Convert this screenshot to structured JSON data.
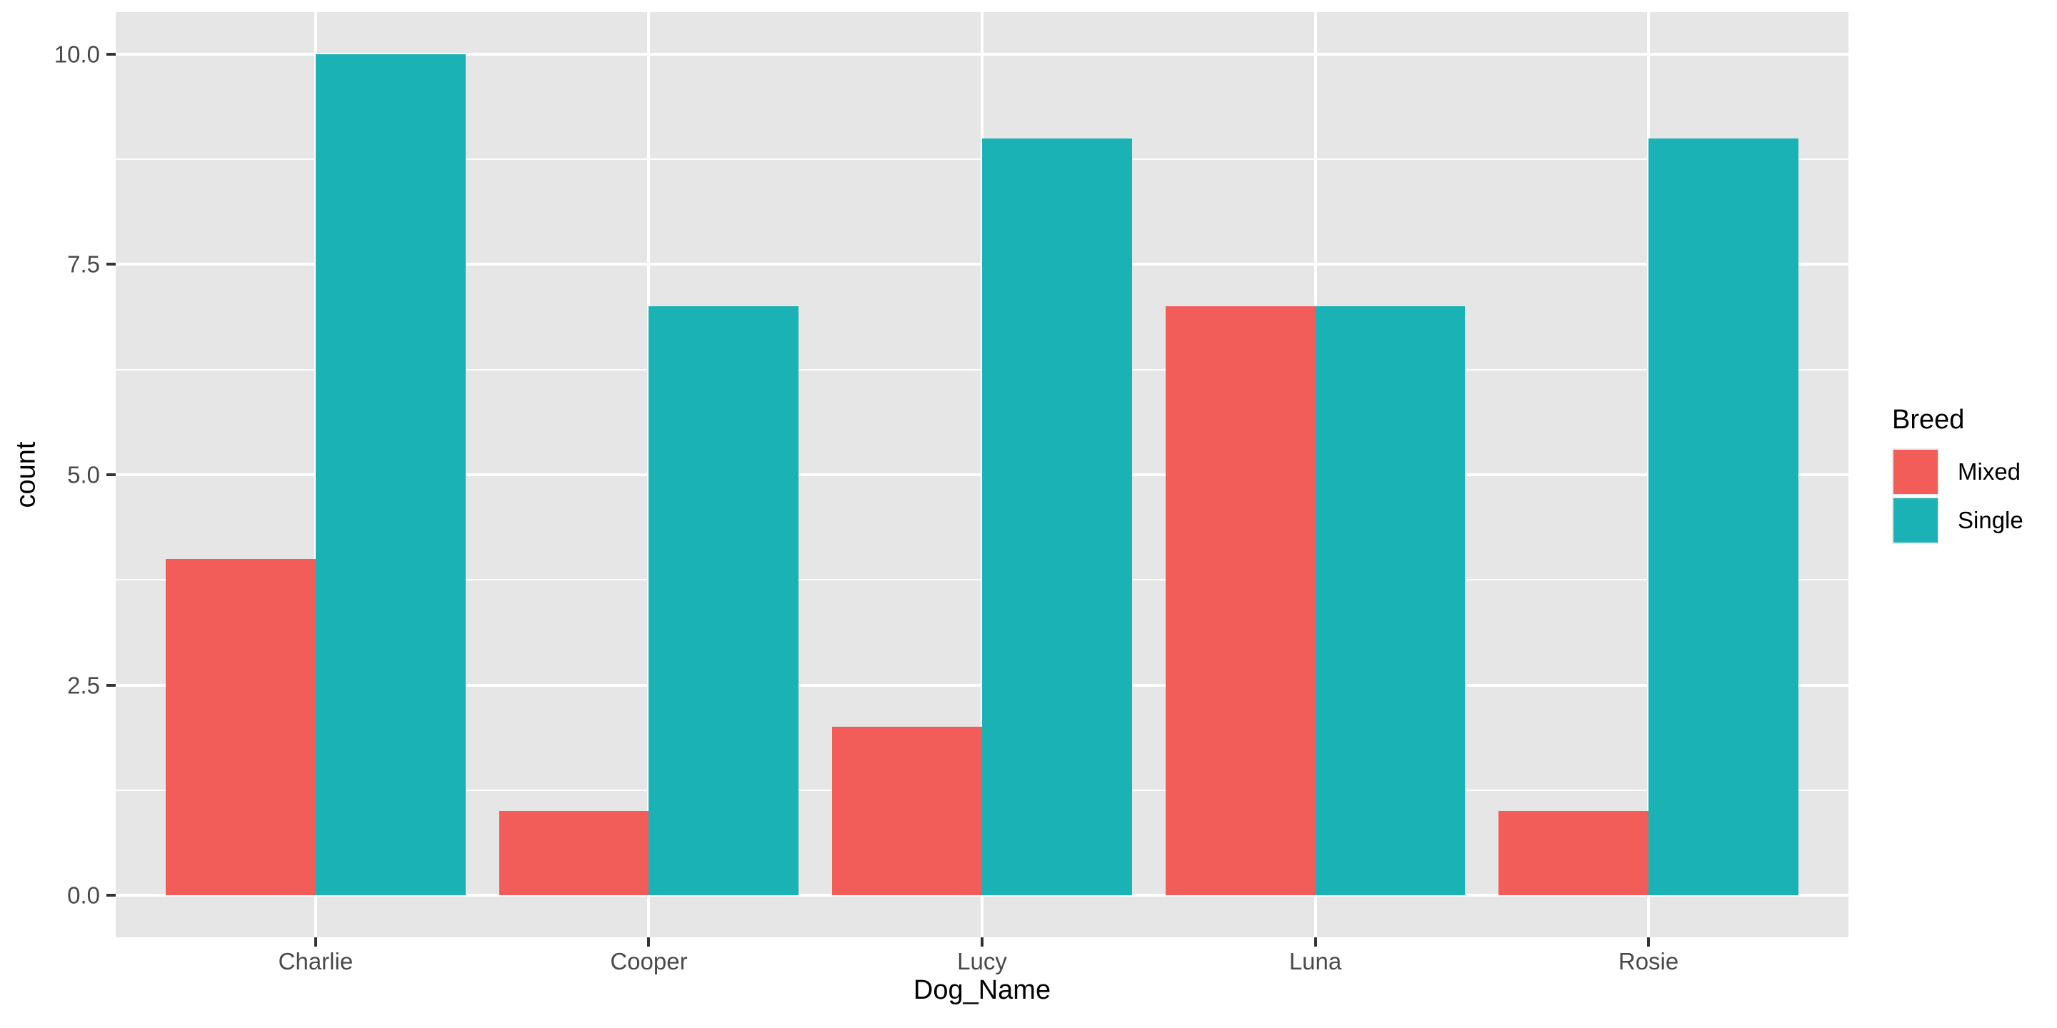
{
  "chart_data": {
    "type": "bar",
    "mode": "grouped",
    "title": "",
    "xlabel": "Dog_Name",
    "ylabel": "count",
    "categories": [
      "Charlie",
      "Cooper",
      "Lucy",
      "Luna",
      "Rosie"
    ],
    "series": [
      {
        "name": "Mixed",
        "color": "#F25D5A",
        "values": [
          4,
          1,
          2,
          7,
          1
        ]
      },
      {
        "name": "Single",
        "color": "#1AB2B4",
        "values": [
          10,
          7,
          9,
          7,
          9
        ]
      }
    ],
    "y_axis": {
      "ticks": [
        {
          "value": 0,
          "label": "0.0"
        },
        {
          "value": 2.5,
          "label": "2.5"
        },
        {
          "value": 5,
          "label": "5.0"
        },
        {
          "value": 7.5,
          "label": "7.5"
        },
        {
          "value": 10,
          "label": "10.0"
        }
      ],
      "minor_ticks": [
        1.25,
        3.75,
        6.25,
        8.75
      ],
      "range": [
        0,
        10
      ]
    },
    "legend": {
      "title": "Breed",
      "position": "right"
    },
    "style": {
      "panel_background": "#E6E6E6",
      "gridline_color": "#FFFFFF",
      "tick_label_color": "#4a4a4a",
      "tick_mark_color": "#333333",
      "grid": "on"
    }
  }
}
